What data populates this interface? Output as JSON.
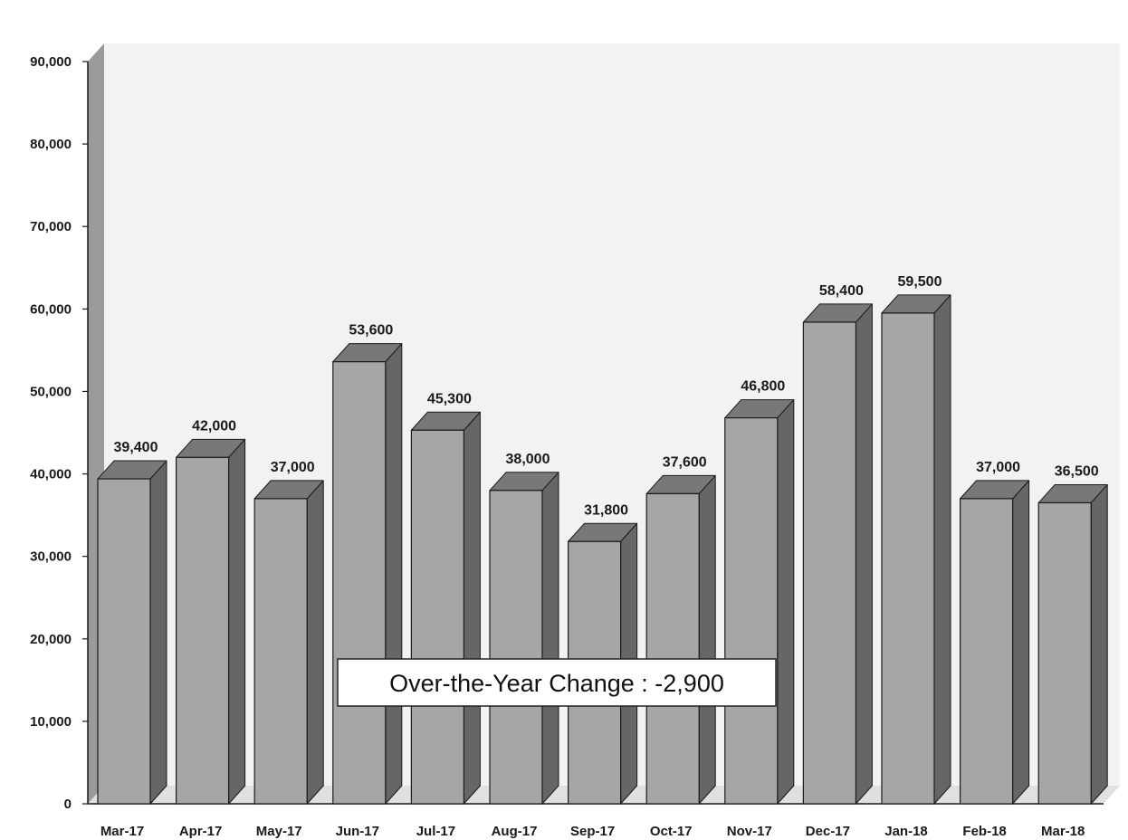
{
  "chart_data": {
    "type": "bar",
    "title": "",
    "xlabel": "",
    "ylabel": "",
    "categories": [
      "Mar-17",
      "Apr-17",
      "May-17",
      "Jun-17",
      "Jul-17",
      "Aug-17",
      "Sep-17",
      "Oct-17",
      "Nov-17",
      "Dec-17",
      "Jan-18",
      "Feb-18",
      "Mar-18"
    ],
    "values": [
      39400,
      42000,
      37000,
      53600,
      45300,
      38000,
      31800,
      37600,
      46800,
      58400,
      59500,
      37000,
      36500
    ],
    "value_labels": [
      "39,400",
      "42,000",
      "37,000",
      "53,600",
      "45,300",
      "38,000",
      "31,800",
      "37,600",
      "46,800",
      "58,400",
      "59,500",
      "37,000",
      "36,500"
    ],
    "ylim": [
      0,
      90000
    ],
    "yticks": [
      0,
      10000,
      20000,
      30000,
      40000,
      50000,
      60000,
      70000,
      80000,
      90000
    ],
    "ytick_labels": [
      "0",
      "10,000",
      "20,000",
      "30,000",
      "40,000",
      "50,000",
      "60,000",
      "70,000",
      "80,000",
      "90,000"
    ],
    "grid": false,
    "style": "3d",
    "annotation": "Over-the-Year Change : -2,900",
    "colors": {
      "bar_front": "#a6a6a6",
      "bar_side": "#666666",
      "bar_top": "#787878",
      "plot_background": "#f2f2f2",
      "wall": "#9a9a9a",
      "outline": "#1a1a1a"
    }
  }
}
